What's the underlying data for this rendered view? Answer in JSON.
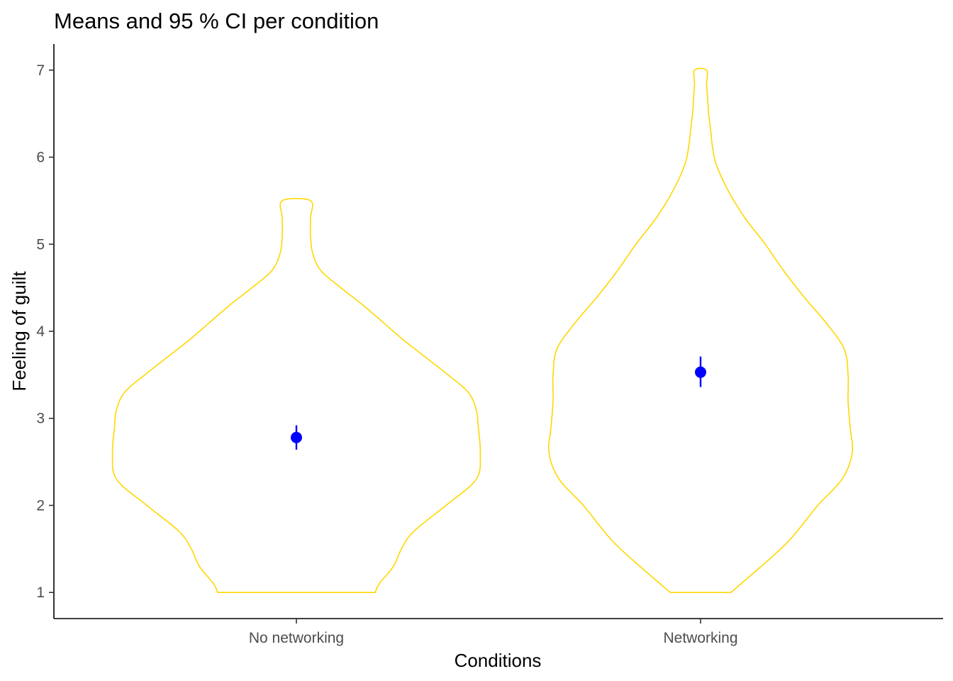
{
  "chart_data": {
    "type": "violin",
    "title": "Means and 95 % CI per condition",
    "xlabel": "Conditions",
    "ylabel": "Feeling of guilt",
    "categories": [
      "No networking",
      "Networking"
    ],
    "ylim": [
      0.7,
      7.3
    ],
    "yticks": [
      1,
      2,
      3,
      4,
      5,
      6,
      7
    ],
    "grid": false,
    "legend": "none",
    "colors": {
      "violin": "#ffd700",
      "mean": "#0000ff",
      "ci": "#0000ff"
    },
    "means": [
      2.78,
      3.53
    ],
    "ci": [
      [
        2.64,
        2.92
      ],
      [
        3.36,
        3.71
      ]
    ],
    "violins": [
      {
        "category": "No networking",
        "y_range": [
          1,
          5.5
        ],
        "y": [
          1.0,
          1.1,
          1.3,
          1.5,
          1.7,
          2.0,
          2.3,
          2.6,
          2.9,
          3.1,
          3.3,
          3.5,
          3.7,
          3.9,
          4.1,
          4.3,
          4.5,
          4.7,
          4.9,
          5.1,
          5.3,
          5.5
        ],
        "half_width": [
          0.195,
          0.205,
          0.24,
          0.26,
          0.29,
          0.37,
          0.445,
          0.455,
          0.45,
          0.445,
          0.425,
          0.375,
          0.32,
          0.265,
          0.215,
          0.165,
          0.11,
          0.06,
          0.04,
          0.035,
          0.035,
          0.035
        ]
      },
      {
        "category": "Networking",
        "y_range": [
          1,
          7
        ],
        "y": [
          1.0,
          1.3,
          1.6,
          2.0,
          2.3,
          2.6,
          2.9,
          3.2,
          3.5,
          3.8,
          4.1,
          4.4,
          4.7,
          5.0,
          5.3,
          5.6,
          5.9,
          6.1,
          6.3,
          6.5,
          6.7,
          6.85,
          7.0
        ],
        "half_width": [
          0.075,
          0.15,
          0.22,
          0.29,
          0.35,
          0.375,
          0.37,
          0.365,
          0.365,
          0.355,
          0.31,
          0.255,
          0.205,
          0.16,
          0.11,
          0.07,
          0.04,
          0.03,
          0.025,
          0.02,
          0.017,
          0.015,
          0.015
        ]
      }
    ]
  }
}
